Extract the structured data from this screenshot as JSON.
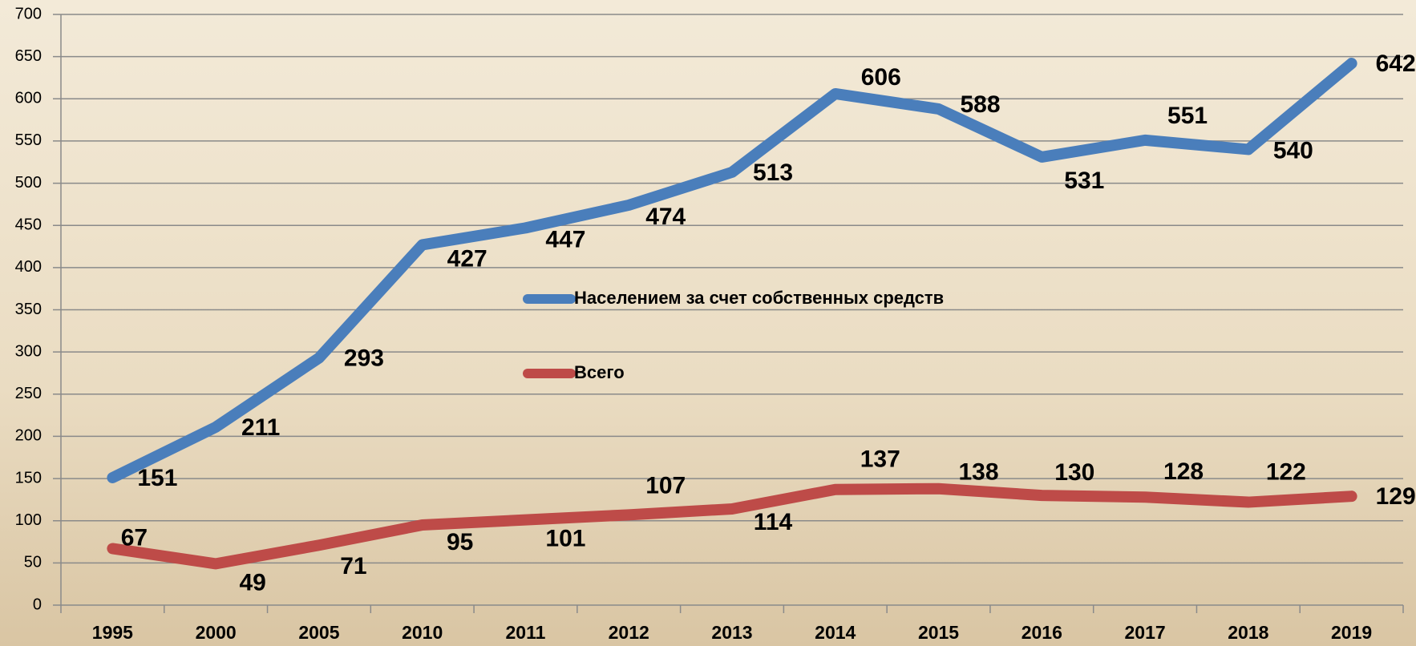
{
  "chart_data": {
    "type": "line",
    "categories": [
      "1995",
      "2000",
      "2005",
      "2010",
      "2011",
      "2012",
      "2013",
      "2014",
      "2015",
      "2016",
      "2017",
      "2018",
      "2019"
    ],
    "series": [
      {
        "name": "Населением за счет собственных средств",
        "color": "#4a7ebb",
        "values": [
          151,
          211,
          293,
          427,
          447,
          474,
          513,
          606,
          588,
          531,
          551,
          540,
          642
        ]
      },
      {
        "name": "Всего",
        "color": "#be4b48",
        "values": [
          67,
          49,
          71,
          95,
          101,
          107,
          114,
          137,
          138,
          130,
          128,
          122,
          129
        ]
      }
    ],
    "ylim": [
      0,
      700
    ],
    "yticks": [
      0,
      50,
      100,
      150,
      200,
      250,
      300,
      350,
      400,
      450,
      500,
      550,
      600,
      650,
      700
    ],
    "grid": true
  }
}
